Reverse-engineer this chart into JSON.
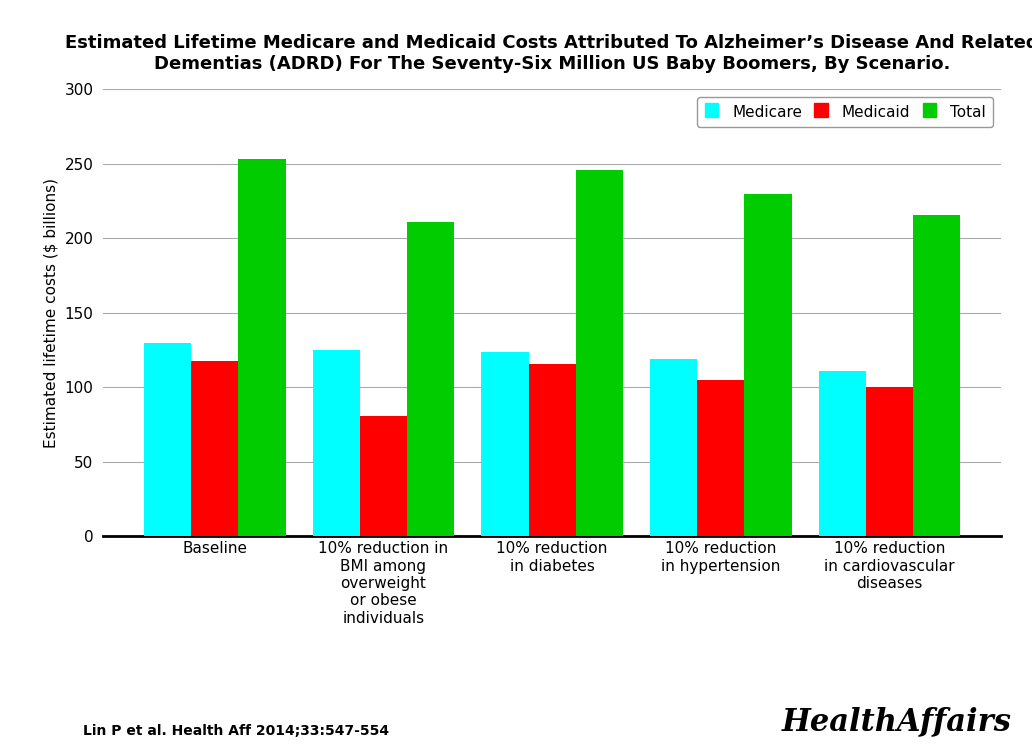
{
  "title": "Estimated Lifetime Medicare and Medicaid Costs Attributed To Alzheimer’s Disease And Related\nDementias (ADRD) For The Seventy-Six Million US Baby Boomers, By Scenario.",
  "ylabel": "Estimated lifetime costs ($ billions)",
  "categories": [
    "Baseline",
    "10% reduction in\nBMI among\noverweight\nor obese\nindividuals",
    "10% reduction\nin diabetes",
    "10% reduction\nin hypertension",
    "10% reduction\nin cardiovascular\ndiseases"
  ],
  "medicare": [
    130,
    125,
    124,
    119,
    111
  ],
  "medicaid": [
    118,
    81,
    116,
    105,
    100
  ],
  "total": [
    253,
    211,
    246,
    230,
    216
  ],
  "colors": {
    "medicare": "#00FFFF",
    "medicaid": "#FF0000",
    "total": "#00CC00"
  },
  "ylim": [
    0,
    300
  ],
  "yticks": [
    0,
    50,
    100,
    150,
    200,
    250,
    300
  ],
  "legend_labels": [
    "Medicare",
    "Medicaid",
    "Total"
  ],
  "citation": "Lin P et al. Health Aff 2014;33:547-554",
  "watermark": "HealthAffairs",
  "background_color": "#FFFFFF",
  "bar_width": 0.28,
  "title_fontsize": 13,
  "ylabel_fontsize": 11,
  "tick_fontsize": 11,
  "legend_fontsize": 11
}
